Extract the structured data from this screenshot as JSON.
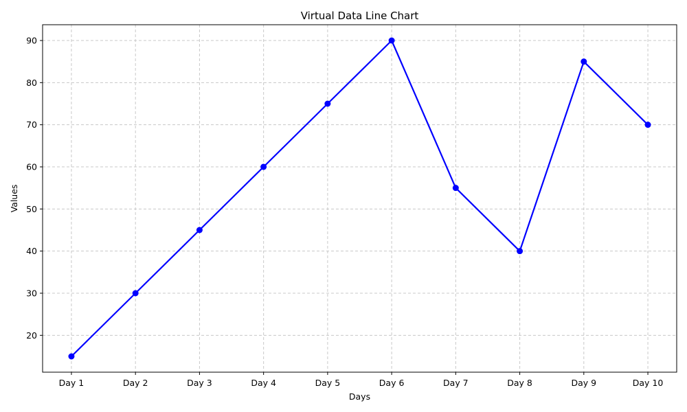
{
  "chart_data": {
    "type": "line",
    "title": "Virtual Data Line Chart",
    "xlabel": "Days",
    "ylabel": "Values",
    "categories": [
      "Day 1",
      "Day 2",
      "Day 3",
      "Day 4",
      "Day 5",
      "Day 6",
      "Day 7",
      "Day 8",
      "Day 9",
      "Day 10"
    ],
    "series": [
      {
        "values": [
          15,
          30,
          45,
          60,
          75,
          90,
          55,
          40,
          85,
          70
        ],
        "color": "#0000ff",
        "marker": "circle"
      }
    ],
    "ylim": [
      11.25,
      93.75
    ],
    "yticks": [
      20,
      30,
      40,
      50,
      60,
      70,
      80,
      90
    ],
    "grid": true,
    "grid_style": "dashed",
    "grid_color": "#c8c8c8"
  }
}
